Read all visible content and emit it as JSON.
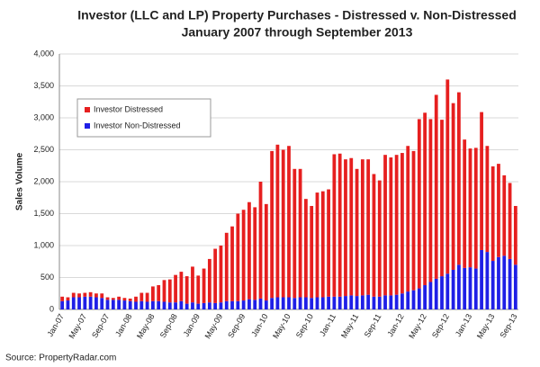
{
  "chart_data": {
    "type": "bar",
    "stacked": true,
    "title": "Investor (LLC and LP) Property Purchases - Distressed v. Non-Distressed",
    "subtitle": "January 2007 through September 2013",
    "y_label": "Sales Volume",
    "source": "Source: PropertyRadar.com",
    "categories": [
      "Jan-07",
      null,
      null,
      null,
      "May-07",
      null,
      null,
      null,
      "Sep-07",
      null,
      null,
      null,
      "Jan-08",
      null,
      null,
      null,
      "May-08",
      null,
      null,
      null,
      "Sep-08",
      null,
      null,
      null,
      "Jan-09",
      null,
      null,
      null,
      "May-09",
      null,
      null,
      null,
      "Sep-09",
      null,
      null,
      null,
      "Jan-10",
      null,
      null,
      null,
      "May-10",
      null,
      null,
      null,
      "Sep-10",
      null,
      null,
      null,
      "Jan-11",
      null,
      null,
      null,
      "May-11",
      null,
      null,
      null,
      "Sep-11",
      null,
      null,
      null,
      "Jan-12",
      null,
      null,
      null,
      "May-12",
      null,
      null,
      null,
      "Sep-12",
      null,
      null,
      null,
      "Jan-13",
      null,
      null,
      null,
      "May-13",
      null,
      null,
      null,
      "Sep-13"
    ],
    "series": [
      {
        "name": "Investor Non-Distressed",
        "color": "#1f1fe6",
        "values": [
          130,
          140,
          190,
          190,
          200,
          200,
          190,
          180,
          150,
          150,
          150,
          140,
          130,
          120,
          130,
          120,
          130,
          130,
          120,
          110,
          110,
          130,
          90,
          110,
          90,
          100,
          110,
          100,
          110,
          130,
          130,
          130,
          140,
          160,
          150,
          170,
          140,
          180,
          190,
          190,
          190,
          180,
          190,
          190,
          180,
          190,
          190,
          200,
          200,
          200,
          210,
          220,
          210,
          220,
          230,
          200,
          200,
          220,
          220,
          230,
          250,
          280,
          300,
          330,
          380,
          430,
          480,
          520,
          560,
          620,
          700,
          650,
          660,
          640,
          930,
          900,
          760,
          820,
          840,
          790,
          700
        ]
      },
      {
        "name": "Investor Distressed",
        "color": "#e61f1f",
        "values": [
          70,
          50,
          70,
          60,
          60,
          70,
          60,
          70,
          40,
          30,
          50,
          40,
          40,
          80,
          130,
          140,
          230,
          250,
          340,
          360,
          430,
          460,
          430,
          560,
          440,
          540,
          680,
          850,
          890,
          1070,
          1170,
          1370,
          1420,
          1520,
          1450,
          1830,
          1510,
          2300,
          2390,
          2310,
          2370,
          2020,
          2010,
          1540,
          1440,
          1640,
          1660,
          1680,
          2230,
          2240,
          2140,
          2150,
          1990,
          2130,
          2120,
          1920,
          1820,
          2200,
          2160,
          2190,
          2200,
          2280,
          2180,
          2650,
          2700,
          2550,
          2880,
          2450,
          3040,
          2610,
          2700,
          2010,
          1860,
          1890,
          2160,
          1660,
          1480,
          1460,
          1260,
          1190,
          920
        ]
      }
    ],
    "ylim": [
      0,
      4000
    ],
    "yticks": [
      0,
      500,
      {
        "value": 1000,
        "label": "1,000"
      },
      {
        "value": 1500,
        "label": "1,500"
      },
      {
        "value": 2000,
        "label": "2,000"
      },
      {
        "value": 2500,
        "label": "2,500"
      },
      {
        "value": 3000,
        "label": "3,000"
      },
      {
        "value": 3500,
        "label": "3,500"
      },
      {
        "value": 4000,
        "label": "4,000"
      }
    ],
    "grid": true,
    "legend": "upper-left"
  }
}
